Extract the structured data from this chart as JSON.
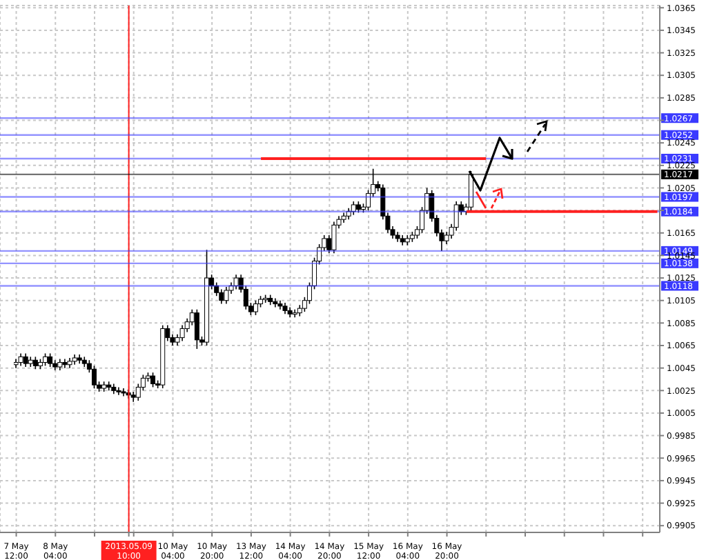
{
  "chart_data": {
    "type": "candlestick",
    "ylim": [
      0.9899,
      1.0367
    ],
    "categories": [
      "7 May 12:00",
      null,
      null,
      null,
      null,
      null,
      null,
      null,
      "8 May 04:00",
      null,
      null,
      null,
      null,
      null,
      null,
      null,
      null,
      null,
      null,
      null,
      null,
      null,
      null,
      "2013.05.09 10:00",
      null,
      null,
      null,
      null,
      null,
      null,
      null,
      null,
      "10 May 04:00",
      null,
      null,
      null,
      null,
      null,
      null,
      null,
      "10 May 20:00",
      null,
      null,
      null,
      null,
      null,
      null,
      null,
      "13 May 12:00",
      null,
      null,
      null,
      null,
      null,
      null,
      null,
      "14 May 04:00",
      null,
      null,
      null,
      null,
      null,
      null,
      null,
      "14 May 20:00",
      null,
      null,
      null,
      null,
      null,
      null,
      null,
      "15 May 12:00",
      null,
      null,
      null,
      null,
      null,
      null,
      null,
      "16 May 04:00",
      null,
      null,
      null,
      null,
      null,
      null,
      null,
      "16 May 20:00",
      null,
      null,
      null,
      null,
      null,
      null,
      null,
      null,
      null,
      null,
      null,
      null,
      null,
      null,
      null,
      null,
      null,
      null,
      null,
      null,
      null,
      null,
      null,
      null,
      null,
      null,
      null,
      null,
      null,
      null,
      null,
      null,
      null,
      null,
      null,
      null,
      null,
      null,
      null,
      null,
      null,
      null,
      null
    ],
    "yticks": [
      0.9905,
      0.9925,
      0.9945,
      0.9965,
      0.9985,
      1.0005,
      1.0025,
      1.0045,
      1.0065,
      1.0085,
      1.0105,
      1.0125,
      1.0145,
      1.0165,
      {
        "value": 1.0185,
        "label": null
      },
      1.0205,
      1.0225,
      1.0245,
      {
        "value": 1.0265,
        "label": null
      },
      1.0285,
      1.0305,
      1.0325,
      1.0345,
      1.0365
    ],
    "grid": true,
    "series": [
      {
        "type": "candlestick",
        "color": "#000000",
        "ohlc": [
          [
            1.0048,
            1.0053,
            1.0045,
            1.005
          ],
          [
            1.005,
            1.0058,
            1.0047,
            1.0055
          ],
          [
            1.0055,
            1.0058,
            1.0046,
            1.0049
          ],
          [
            1.0049,
            1.0055,
            1.0046,
            1.0052
          ],
          [
            1.0052,
            1.0055,
            1.0044,
            1.0047
          ],
          [
            1.0047,
            1.0053,
            1.0044,
            1.005
          ],
          [
            1.005,
            1.0058,
            1.0047,
            1.0055
          ],
          [
            1.0055,
            1.0058,
            1.0046,
            1.0049
          ],
          [
            1.0049,
            1.0052,
            1.0043,
            1.0046
          ],
          [
            1.0046,
            1.0053,
            1.0043,
            1.005
          ],
          [
            1.005,
            1.0053,
            1.0045,
            1.0048
          ],
          [
            1.0048,
            1.0054,
            1.0045,
            1.0051
          ],
          [
            1.0051,
            1.0057,
            1.0048,
            1.0054
          ],
          [
            1.0054,
            1.0057,
            1.0049,
            1.0052
          ],
          [
            1.0052,
            1.0055,
            1.0046,
            1.0049
          ],
          [
            1.0049,
            1.0052,
            1.0041,
            1.0044
          ],
          [
            1.0044,
            1.0047,
            1.0027,
            1.003
          ],
          [
            1.003,
            1.0033,
            1.0024,
            1.0027
          ],
          [
            1.0027,
            1.0033,
            1.0024,
            1.003
          ],
          [
            1.003,
            1.0033,
            1.0025,
            1.0028
          ],
          [
            1.0028,
            1.0031,
            1.0022,
            1.0025
          ],
          [
            1.0025,
            1.0028,
            1.0021,
            1.0024
          ],
          [
            1.0024,
            1.0027,
            1.002,
            1.0023
          ],
          [
            1.0023,
            1.0026,
            1.0018,
            1.0021
          ],
          [
            1.0021,
            1.0024,
            1.0015,
            1.0019
          ],
          [
            1.0019,
            1.0031,
            1.0016,
            1.0028
          ],
          [
            1.0028,
            1.0039,
            1.0025,
            1.0036
          ],
          [
            1.0036,
            1.0041,
            1.0033,
            1.0038
          ],
          [
            1.0038,
            1.0041,
            1.0028,
            1.0031
          ],
          [
            1.0031,
            1.0034,
            1.0027,
            1.003
          ],
          [
            1.003,
            1.0083,
            1.0027,
            1.008
          ],
          [
            1.008,
            1.0083,
            1.0069,
            1.0072
          ],
          [
            1.0072,
            1.0075,
            1.0065,
            1.0068
          ],
          [
            1.0068,
            1.0075,
            1.0065,
            1.0072
          ],
          [
            1.0072,
            1.0083,
            1.0069,
            1.008
          ],
          [
            1.008,
            1.0089,
            1.0077,
            1.0086
          ],
          [
            1.0086,
            1.0097,
            1.0083,
            1.0094
          ],
          [
            1.0094,
            1.0097,
            1.0062,
            1.007
          ],
          [
            1.007,
            1.0073,
            1.0065,
            1.0068
          ],
          [
            1.0068,
            1.015,
            1.0065,
            1.0125
          ],
          [
            1.0125,
            1.0128,
            1.0115,
            1.0118
          ],
          [
            1.0118,
            1.0121,
            1.0109,
            1.0112
          ],
          [
            1.0112,
            1.0115,
            1.0102,
            1.0105
          ],
          [
            1.0105,
            1.0117,
            1.0102,
            1.0114
          ],
          [
            1.0114,
            1.0121,
            1.0111,
            1.0118
          ],
          [
            1.0118,
            1.0128,
            1.0115,
            1.0125
          ],
          [
            1.0125,
            1.0128,
            1.0112,
            1.0115
          ],
          [
            1.0115,
            1.0118,
            1.0097,
            1.01
          ],
          [
            1.01,
            1.0103,
            1.0092,
            1.0095
          ],
          [
            1.0095,
            1.0105,
            1.0092,
            1.0102
          ],
          [
            1.0102,
            1.0109,
            1.0099,
            1.0106
          ],
          [
            1.0106,
            1.011,
            1.0103,
            1.0107
          ],
          [
            1.0107,
            1.011,
            1.0101,
            1.0104
          ],
          [
            1.0104,
            1.0107,
            1.0099,
            1.0102
          ],
          [
            1.0102,
            1.0105,
            1.0097,
            1.01
          ],
          [
            1.01,
            1.0103,
            1.0093,
            1.0096
          ],
          [
            1.0096,
            1.0099,
            1.009,
            1.0093
          ],
          [
            1.0093,
            1.0097,
            1.009,
            1.0094
          ],
          [
            1.0094,
            1.0101,
            1.0091,
            1.0098
          ],
          [
            1.0098,
            1.0108,
            1.0095,
            1.0105
          ],
          [
            1.0105,
            1.0121,
            1.0102,
            1.0118
          ],
          [
            1.0118,
            1.0143,
            1.0115,
            1.014
          ],
          [
            1.014,
            1.0155,
            1.0137,
            1.0152
          ],
          [
            1.0152,
            1.0163,
            1.0149,
            1.016
          ],
          [
            1.016,
            1.0163,
            1.0147,
            1.015
          ],
          [
            1.015,
            1.0175,
            1.0147,
            1.0172
          ],
          [
            1.0172,
            1.018,
            1.0169,
            1.0177
          ],
          [
            1.0177,
            1.0183,
            1.0174,
            1.018
          ],
          [
            1.018,
            1.0187,
            1.0177,
            1.0184
          ],
          [
            1.0184,
            1.0193,
            1.0181,
            1.019
          ],
          [
            1.019,
            1.0193,
            1.0183,
            1.0186
          ],
          [
            1.0186,
            1.0191,
            1.0183,
            1.0188
          ],
          [
            1.0188,
            1.0203,
            1.0185,
            1.02
          ],
          [
            1.02,
            1.0222,
            1.0197,
            1.0208
          ],
          [
            1.0208,
            1.0211,
            1.0202,
            1.0205
          ],
          [
            1.0205,
            1.0208,
            1.0177,
            1.018
          ],
          [
            1.018,
            1.0183,
            1.0165,
            1.0168
          ],
          [
            1.0168,
            1.0171,
            1.016,
            1.0163
          ],
          [
            1.0163,
            1.0166,
            1.0157,
            1.016
          ],
          [
            1.016,
            1.0163,
            1.0154,
            1.0157
          ],
          [
            1.0157,
            1.0163,
            1.0154,
            1.016
          ],
          [
            1.016,
            1.0166,
            1.0157,
            1.0163
          ],
          [
            1.0163,
            1.0171,
            1.016,
            1.0168
          ],
          [
            1.0168,
            1.0188,
            1.0165,
            1.0185
          ],
          [
            1.0185,
            1.0205,
            1.0182,
            1.02
          ],
          [
            1.02,
            1.0203,
            1.0175,
            1.0178
          ],
          [
            1.0178,
            1.0181,
            1.0162,
            1.0165
          ],
          [
            1.0165,
            1.0168,
            1.0149,
            1.0158
          ],
          [
            1.0158,
            1.0166,
            1.0155,
            1.0163
          ],
          [
            1.0163,
            1.0173,
            1.016,
            1.017
          ],
          [
            1.017,
            1.0193,
            1.0167,
            1.019
          ],
          [
            1.019,
            1.0193,
            1.0181,
            1.0184
          ],
          [
            1.0184,
            1.0191,
            1.0181,
            1.0188
          ],
          [
            1.0188,
            1.022,
            1.0185,
            1.0217
          ],
          null,
          null,
          null,
          null,
          null,
          null,
          null,
          null,
          null,
          null,
          null,
          null,
          null,
          null,
          null,
          null,
          null,
          null,
          null,
          null,
          null,
          null,
          null,
          null,
          null,
          null,
          null,
          null,
          null,
          null,
          null,
          null,
          null,
          null,
          null,
          null,
          null,
          null
        ]
      },
      {
        "type": "line",
        "color": "#ff2020",
        "values": [
          null,
          null,
          null,
          null,
          null,
          null,
          null,
          null,
          null,
          null,
          null,
          null,
          null,
          null,
          null,
          null,
          null,
          null,
          null,
          null,
          null,
          null,
          null,
          null,
          null,
          null,
          null,
          null,
          null,
          null,
          null,
          null,
          null,
          null,
          null,
          null,
          null,
          null,
          null,
          null,
          null,
          null,
          null,
          null,
          null,
          null,
          null,
          null,
          null,
          null,
          1.0231,
          null,
          null,
          null,
          null,
          null,
          null,
          null,
          null,
          null,
          null,
          null,
          null,
          null,
          null,
          null,
          null,
          null,
          null,
          null,
          null,
          null,
          null,
          null,
          null,
          null,
          null,
          null,
          null,
          null,
          null,
          null,
          null,
          null,
          null,
          null,
          null,
          null,
          null,
          null,
          null,
          null,
          null,
          null,
          null,
          null,
          1.0231,
          null,
          null,
          null,
          null,
          null,
          null,
          null,
          null,
          null,
          null,
          null,
          null,
          null,
          null,
          null,
          null,
          null,
          null,
          null,
          null,
          null,
          null,
          null,
          null,
          null,
          null,
          null,
          null,
          null,
          null,
          null,
          null,
          null,
          null,
          null
        ]
      },
      {
        "type": "line",
        "color": "#ff2020",
        "values": [
          null,
          null,
          null,
          null,
          null,
          null,
          null,
          null,
          null,
          null,
          null,
          null,
          null,
          null,
          null,
          null,
          null,
          null,
          null,
          null,
          null,
          null,
          null,
          null,
          null,
          null,
          null,
          null,
          null,
          null,
          null,
          null,
          null,
          null,
          null,
          null,
          null,
          null,
          null,
          null,
          null,
          null,
          null,
          null,
          null,
          null,
          null,
          null,
          null,
          null,
          null,
          null,
          null,
          null,
          null,
          null,
          null,
          null,
          null,
          null,
          null,
          null,
          null,
          null,
          null,
          null,
          null,
          null,
          null,
          null,
          null,
          null,
          null,
          null,
          null,
          null,
          null,
          null,
          null,
          null,
          null,
          null,
          null,
          null,
          null,
          null,
          null,
          null,
          null,
          null,
          null,
          null,
          1.0184,
          null,
          null,
          null,
          null,
          null,
          null,
          null,
          null,
          null,
          null,
          null,
          null,
          null,
          null,
          null,
          null,
          null,
          null,
          null,
          null,
          null,
          null,
          null,
          null,
          null,
          null,
          null,
          null,
          null,
          null,
          null,
          null,
          null,
          null,
          null,
          null,
          null,
          null,
          1.0184
        ]
      }
    ],
    "ref_lines": [
      {
        "axis": "y",
        "value": 1.0267,
        "label": "1.0267",
        "color": "#3a3aff"
      },
      {
        "axis": "y",
        "value": 1.0252,
        "label": "1.0252",
        "color": "#3a3aff"
      },
      {
        "axis": "y",
        "value": 1.0231,
        "label": "1.0231",
        "color": "#3a3aff"
      },
      {
        "axis": "y",
        "value": 1.0217,
        "label": "1.0217",
        "color": "#000000"
      },
      {
        "axis": "y",
        "value": 1.0197,
        "label": "1.0197",
        "color": "#3a3aff"
      },
      {
        "axis": "y",
        "value": 1.0184,
        "label": "1.0184",
        "color": "#3a3aff"
      },
      {
        "axis": "y",
        "value": 1.0149,
        "label": "1.0149",
        "color": "#3a3aff"
      },
      {
        "axis": "y",
        "value": 1.0138,
        "label": "1.0138",
        "color": "#3a3aff"
      },
      {
        "axis": "y",
        "value": 1.0118,
        "label": "1.0118",
        "color": "#3a3aff"
      },
      {
        "axis": "x",
        "value": "2013.05.09 10:00",
        "color": "#ff2020"
      }
    ]
  }
}
